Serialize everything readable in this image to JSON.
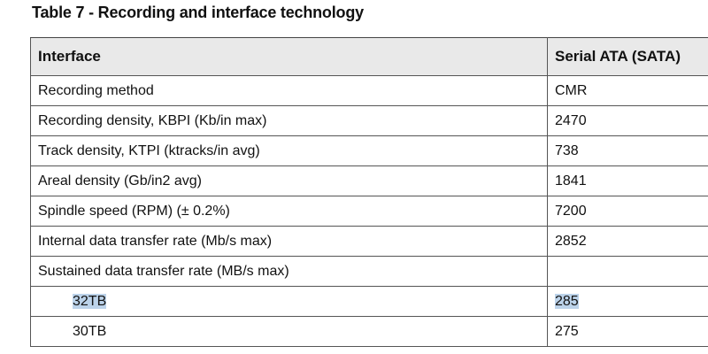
{
  "caption": "Table 7 - Recording and interface technology",
  "table": {
    "headers": [
      "Interface",
      "Serial ATA (SATA)"
    ],
    "rows": [
      {
        "label": "Recording method",
        "value": "CMR"
      },
      {
        "label": "Recording density, KBPI (Kb/in max)",
        "value": "2470"
      },
      {
        "label": "Track density, KTPI (ktracks/in avg)",
        "value": "738"
      },
      {
        "label": "Areal density (Gb/in2 avg)",
        "value": "1841"
      },
      {
        "label": "Spindle speed (RPM) (± 0.2%)",
        "value": "7200"
      },
      {
        "label": "Internal data transfer rate (Mb/s max)",
        "value": "2852"
      },
      {
        "label": "Sustained data transfer rate (MB/s max)",
        "value": ""
      },
      {
        "label": "32TB",
        "value": "285"
      },
      {
        "label": "30TB",
        "value": "275"
      }
    ]
  },
  "selection_color": "#bcd3ea"
}
